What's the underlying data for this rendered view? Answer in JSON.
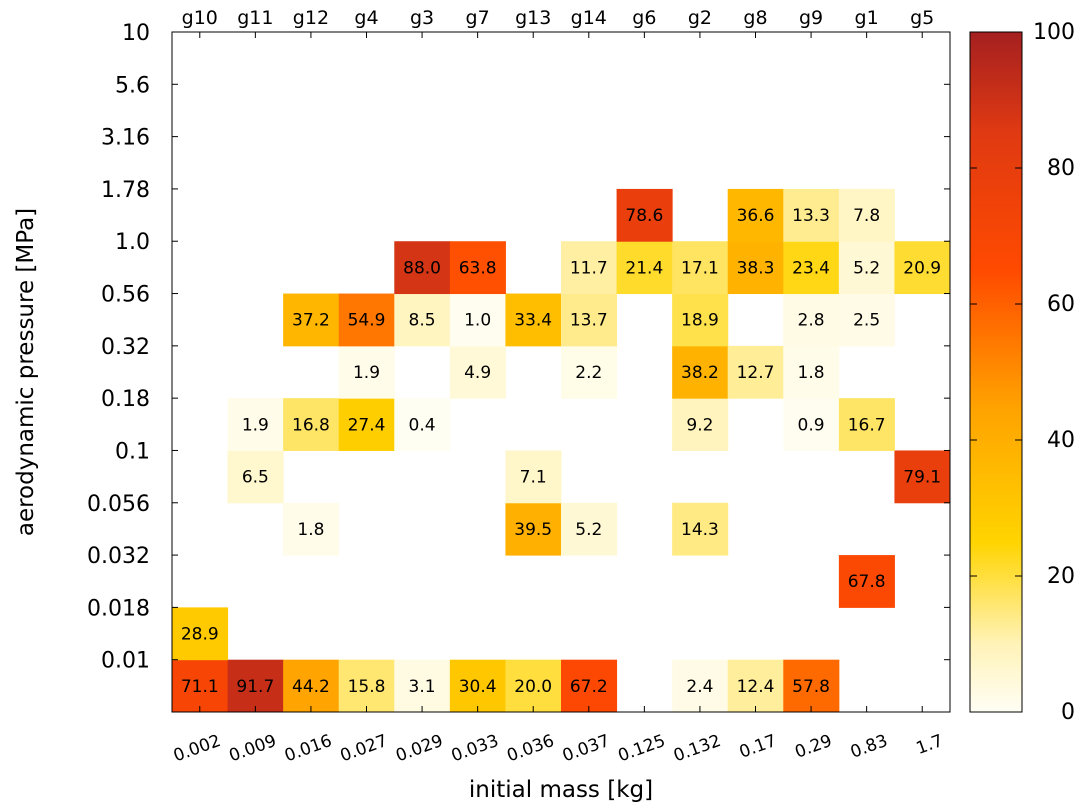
{
  "chart_data": {
    "type": "heatmap",
    "xlabel": "initial mass [kg]",
    "ylabel": "aerodynamic pressure [MPa]",
    "x_tick_labels": [
      "0.002",
      "0.009",
      "0.016",
      "0.027",
      "0.029",
      "0.033",
      "0.036",
      "0.037",
      "0.125",
      "0.132",
      "0.17",
      "0.29",
      "0.83",
      "1.7"
    ],
    "top_tick_labels": [
      "g10",
      "g11",
      "g12",
      "g4",
      "g3",
      "g7",
      "g13",
      "g14",
      "g6",
      "g2",
      "g8",
      "g9",
      "g1",
      "g5"
    ],
    "y_tick_labels": [
      "0.01",
      "0.018",
      "0.032",
      "0.056",
      "0.1",
      "0.18",
      "0.32",
      "0.56",
      "1.0",
      "1.78",
      "3.16",
      "5.6",
      "10"
    ],
    "colorbar": {
      "min": 0,
      "max": 100,
      "ticks": [
        "0",
        "20",
        "40",
        "60",
        "80",
        "100"
      ],
      "colors": [
        "#fffef5",
        "#fff3b8",
        "#ffd400",
        "#ffa200",
        "#ff4a00",
        "#e03a12",
        "#a52020"
      ]
    },
    "cells": [
      {
        "col": 0,
        "row": 0,
        "value": 71.1
      },
      {
        "col": 1,
        "row": 0,
        "value": 91.7
      },
      {
        "col": 2,
        "row": 0,
        "value": 44.2
      },
      {
        "col": 3,
        "row": 0,
        "value": 15.8
      },
      {
        "col": 4,
        "row": 0,
        "value": 3.1
      },
      {
        "col": 5,
        "row": 0,
        "value": 30.4
      },
      {
        "col": 6,
        "row": 0,
        "value": 20.0
      },
      {
        "col": 7,
        "row": 0,
        "value": 67.2
      },
      {
        "col": 9,
        "row": 0,
        "value": 2.4
      },
      {
        "col": 10,
        "row": 0,
        "value": 12.4
      },
      {
        "col": 11,
        "row": 0,
        "value": 57.8
      },
      {
        "col": 0,
        "row": 1,
        "value": 28.9
      },
      {
        "col": 12,
        "row": 2,
        "value": 67.8
      },
      {
        "col": 2,
        "row": 3,
        "value": 1.8
      },
      {
        "col": 6,
        "row": 3,
        "value": 39.5
      },
      {
        "col": 7,
        "row": 3,
        "value": 5.2
      },
      {
        "col": 9,
        "row": 3,
        "value": 14.3
      },
      {
        "col": 1,
        "row": 4,
        "value": 6.5
      },
      {
        "col": 6,
        "row": 4,
        "value": 7.1
      },
      {
        "col": 13,
        "row": 4,
        "value": 79.1
      },
      {
        "col": 1,
        "row": 5,
        "value": 1.9
      },
      {
        "col": 2,
        "row": 5,
        "value": 16.8
      },
      {
        "col": 3,
        "row": 5,
        "value": 27.4
      },
      {
        "col": 4,
        "row": 5,
        "value": 0.4
      },
      {
        "col": 9,
        "row": 5,
        "value": 9.2
      },
      {
        "col": 11,
        "row": 5,
        "value": 0.9
      },
      {
        "col": 12,
        "row": 5,
        "value": 16.7
      },
      {
        "col": 3,
        "row": 6,
        "value": 1.9
      },
      {
        "col": 5,
        "row": 6,
        "value": 4.9
      },
      {
        "col": 7,
        "row": 6,
        "value": 2.2
      },
      {
        "col": 9,
        "row": 6,
        "value": 38.2
      },
      {
        "col": 10,
        "row": 6,
        "value": 12.7
      },
      {
        "col": 11,
        "row": 6,
        "value": 1.8
      },
      {
        "col": 2,
        "row": 7,
        "value": 37.2
      },
      {
        "col": 3,
        "row": 7,
        "value": 54.9
      },
      {
        "col": 4,
        "row": 7,
        "value": 8.5
      },
      {
        "col": 5,
        "row": 7,
        "value": 1.0
      },
      {
        "col": 6,
        "row": 7,
        "value": 33.4
      },
      {
        "col": 7,
        "row": 7,
        "value": 13.7
      },
      {
        "col": 9,
        "row": 7,
        "value": 18.9
      },
      {
        "col": 11,
        "row": 7,
        "value": 2.8
      },
      {
        "col": 12,
        "row": 7,
        "value": 2.5
      },
      {
        "col": 4,
        "row": 8,
        "value": 88.0
      },
      {
        "col": 5,
        "row": 8,
        "value": 63.8
      },
      {
        "col": 7,
        "row": 8,
        "value": 11.7
      },
      {
        "col": 8,
        "row": 8,
        "value": 21.4
      },
      {
        "col": 9,
        "row": 8,
        "value": 17.1
      },
      {
        "col": 10,
        "row": 8,
        "value": 38.3
      },
      {
        "col": 11,
        "row": 8,
        "value": 23.4
      },
      {
        "col": 12,
        "row": 8,
        "value": 5.2
      },
      {
        "col": 13,
        "row": 8,
        "value": 20.9
      },
      {
        "col": 8,
        "row": 9,
        "value": 78.6
      },
      {
        "col": 10,
        "row": 9,
        "value": 36.6
      },
      {
        "col": 11,
        "row": 9,
        "value": 13.3
      },
      {
        "col": 12,
        "row": 9,
        "value": 7.8
      }
    ]
  }
}
